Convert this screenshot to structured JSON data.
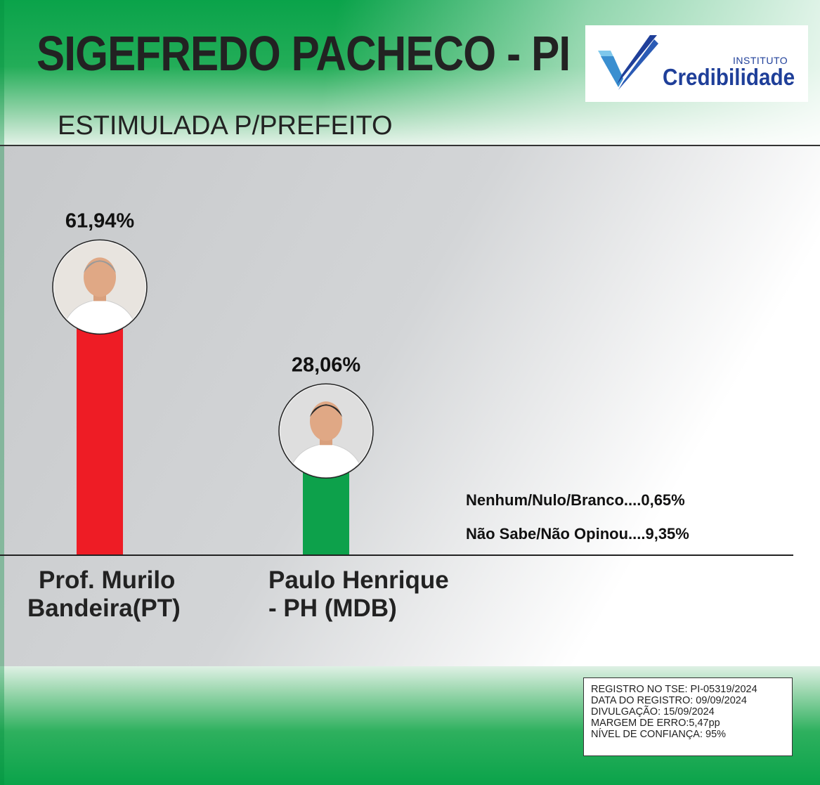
{
  "header": {
    "title": "SIGEFREDO PACHECO - PI",
    "subtitle": "ESTIMULADA P/PREFEITO"
  },
  "logo": {
    "prefix": "INSTITUTO",
    "name": "Credibilidade"
  },
  "chart_data": {
    "type": "bar",
    "title": "ESTIMULADA P/PREFEITO",
    "categories": [
      "Prof. Murilo Bandeira(PT)",
      "Paulo Henrique - PH (MDB)"
    ],
    "values": [
      61.94,
      28.06
    ],
    "value_labels": [
      "61,94%",
      "28,06%"
    ],
    "colors": [
      "#ee1c25",
      "#0da14b"
    ],
    "candidate_names": [
      [
        "Prof. Murilo",
        "Bandeira(PT)"
      ],
      [
        "Paulo Henrique",
        "- PH (MDB)"
      ]
    ],
    "others": [
      {
        "label": "Nenhum/Nulo/Branco....0,65%",
        "value": 0.65
      },
      {
        "label": "Não Sabe/Não Opinou....9,35%",
        "value": 9.35
      }
    ],
    "ylim": [
      0,
      100
    ],
    "grid": false
  },
  "registry": {
    "lines": [
      "REGISTRO NO TSE: PI-05319/2024",
      "DATA DO REGISTRO: 09/09/2024",
      "DIVULGAÇÃO: 15/09/2024",
      "MARGEM DE ERRO:5,47pp",
      "NÍVEL DE CONFIANÇA: 95%"
    ]
  },
  "colors": {
    "brand_green": "#0aa34a",
    "logo_blue": "#1f3f99",
    "bar_red": "#ee1c25",
    "bar_green": "#0da14b"
  },
  "icons": {
    "logo_mark": "checkmark-v-icon",
    "candidate_1_photo": "candidate-portrait-icon",
    "candidate_2_photo": "candidate-portrait-icon"
  }
}
